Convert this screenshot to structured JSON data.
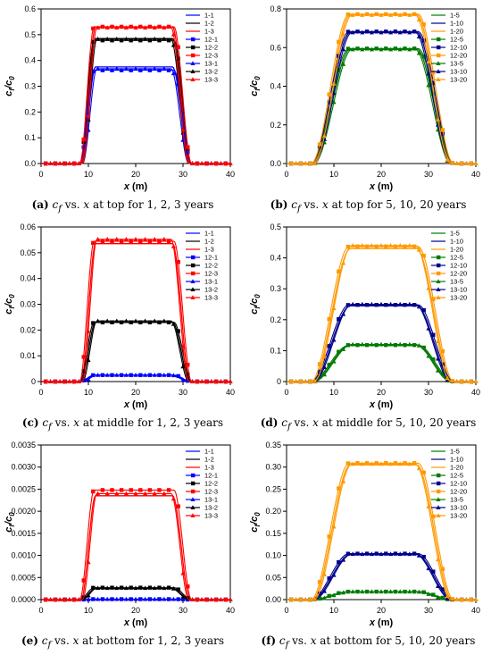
{
  "chart_data": [
    {
      "id": "a",
      "type": "line",
      "caption": {
        "label": "(a)",
        "sym": "c",
        "sub": "f",
        "rest1": " vs. ",
        "xvar": "x",
        "rest2": " at top for 1, 2, 3 years"
      },
      "xlabel": "x (m)",
      "ylabel": "cf/c0",
      "xlim": [
        0,
        40
      ],
      "ylim": [
        0,
        0.6
      ],
      "xticks": [
        "0",
        "10",
        "20",
        "30",
        "40"
      ],
      "yticks": [
        "0.0",
        "0.1",
        "0.2",
        "0.3",
        "0.4",
        "0.5",
        "0.6"
      ],
      "legend_position": "top-right",
      "series": [
        {
          "name": "1-1",
          "group": 1,
          "color": "#0000ff",
          "plateau": 0.375
        },
        {
          "name": "1-2",
          "group": 1,
          "color": "#000000",
          "plateau": 0.485
        },
        {
          "name": "1-3",
          "group": 1,
          "color": "#ff0000",
          "plateau": 0.53
        },
        {
          "name": "12-1",
          "group": 12,
          "color": "#0000ff",
          "plateau": 0.362
        },
        {
          "name": "12-2",
          "group": 12,
          "color": "#000000",
          "plateau": 0.478
        },
        {
          "name": "12-3",
          "group": 12,
          "color": "#ff0000",
          "plateau": 0.531
        },
        {
          "name": "13-1",
          "group": 13,
          "color": "#0000ff",
          "plateau": 0.368
        },
        {
          "name": "13-2",
          "group": 13,
          "color": "#000000",
          "plateau": 0.483
        },
        {
          "name": "13-3",
          "group": 13,
          "color": "#ff0000",
          "plateau": 0.527
        }
      ]
    },
    {
      "id": "b",
      "type": "line",
      "caption": {
        "label": "(b)",
        "sym": "c",
        "sub": "f",
        "rest1": " vs. ",
        "xvar": "x",
        "rest2": " at top for 5, 10, 20 years"
      },
      "xlabel": "x (m)",
      "ylabel": "cf/c0",
      "xlim": [
        0,
        40
      ],
      "ylim": [
        0,
        0.8
      ],
      "xticks": [
        "0",
        "10",
        "20",
        "30",
        "40"
      ],
      "yticks": [
        "0.0",
        "0.2",
        "0.4",
        "0.6",
        "0.8"
      ],
      "legend_position": "top-right",
      "series": [
        {
          "name": "1-5",
          "group": 1,
          "color": "#007a00",
          "plateau": 0.593
        },
        {
          "name": "1-10",
          "group": 1,
          "color": "#00008b",
          "plateau": 0.68
        },
        {
          "name": "1-20",
          "group": 1,
          "color": "#ff9900",
          "plateau": 0.77
        },
        {
          "name": "12-5",
          "group": 12,
          "color": "#007a00",
          "plateau": 0.595
        },
        {
          "name": "12-10",
          "group": 12,
          "color": "#00008b",
          "plateau": 0.683
        },
        {
          "name": "12-20",
          "group": 12,
          "color": "#ff9900",
          "plateau": 0.773
        },
        {
          "name": "13-5",
          "group": 13,
          "color": "#007a00",
          "plateau": 0.59
        },
        {
          "name": "13-10",
          "group": 13,
          "color": "#00008b",
          "plateau": 0.678
        },
        {
          "name": "13-20",
          "group": 13,
          "color": "#ff9900",
          "plateau": 0.768
        }
      ]
    },
    {
      "id": "c",
      "type": "line",
      "caption": {
        "label": "(c)",
        "sym": "c",
        "sub": "f",
        "rest1": " vs. ",
        "xvar": "x",
        "rest2": " at middle for 1, 2, 3 years"
      },
      "xlabel": "x (m)",
      "ylabel": "cf/c0",
      "xlim": [
        0,
        40
      ],
      "ylim": [
        0,
        0.06
      ],
      "xticks": [
        "0",
        "10",
        "20",
        "30",
        "40"
      ],
      "yticks": [
        "0",
        "0.01",
        "0.02",
        "0.03",
        "0.04",
        "0.05",
        "0.06"
      ],
      "legend_position": "top-right",
      "series": [
        {
          "name": "1-1",
          "group": 1,
          "color": "#0000ff",
          "plateau": 0.0025
        },
        {
          "name": "1-2",
          "group": 1,
          "color": "#000000",
          "plateau": 0.023
        },
        {
          "name": "1-3",
          "group": 1,
          "color": "#ff0000",
          "plateau": 0.0535
        },
        {
          "name": "12-1",
          "group": 12,
          "color": "#0000ff",
          "plateau": 0.0025
        },
        {
          "name": "12-2",
          "group": 12,
          "color": "#000000",
          "plateau": 0.023
        },
        {
          "name": "12-3",
          "group": 12,
          "color": "#ff0000",
          "plateau": 0.0545
        },
        {
          "name": "13-1",
          "group": 13,
          "color": "#0000ff",
          "plateau": 0.0025
        },
        {
          "name": "13-2",
          "group": 13,
          "color": "#000000",
          "plateau": 0.0235
        },
        {
          "name": "13-3",
          "group": 13,
          "color": "#ff0000",
          "plateau": 0.0552
        }
      ]
    },
    {
      "id": "d",
      "type": "line",
      "caption": {
        "label": "(d)",
        "sym": "c",
        "sub": "f",
        "rest1": " vs. ",
        "xvar": "x",
        "rest2": " at middle for 5, 10, 20 years"
      },
      "xlabel": "x (m)",
      "ylabel": "cf/c0",
      "xlim": [
        0,
        40
      ],
      "ylim": [
        0,
        0.5
      ],
      "xticks": [
        "0",
        "10",
        "20",
        "30",
        "40"
      ],
      "yticks": [
        "0",
        "0.1",
        "0.2",
        "0.3",
        "0.4",
        "0.5"
      ],
      "legend_position": "top-right",
      "series": [
        {
          "name": "1-5",
          "group": 1,
          "color": "#007a00",
          "plateau": 0.118
        },
        {
          "name": "1-10",
          "group": 1,
          "color": "#00008b",
          "plateau": 0.245
        },
        {
          "name": "1-20",
          "group": 1,
          "color": "#ff9900",
          "plateau": 0.43
        },
        {
          "name": "12-5",
          "group": 12,
          "color": "#007a00",
          "plateau": 0.118
        },
        {
          "name": "12-10",
          "group": 12,
          "color": "#00008b",
          "plateau": 0.248
        },
        {
          "name": "12-20",
          "group": 12,
          "color": "#ff9900",
          "plateau": 0.437
        },
        {
          "name": "13-5",
          "group": 13,
          "color": "#007a00",
          "plateau": 0.12
        },
        {
          "name": "13-10",
          "group": 13,
          "color": "#00008b",
          "plateau": 0.25
        },
        {
          "name": "13-20",
          "group": 13,
          "color": "#ff9900",
          "plateau": 0.44
        }
      ]
    },
    {
      "id": "e",
      "type": "line",
      "caption": {
        "label": "(e)",
        "sym": "c",
        "sub": "f",
        "rest1": " vs. ",
        "xvar": "x",
        "rest2": " at bottom for 1, 2, 3 years"
      },
      "xlabel": "x (m)",
      "ylabel": "cf/c0",
      "xlim": [
        0,
        40
      ],
      "ylim": [
        0,
        0.0035
      ],
      "xticks": [
        "0",
        "10",
        "20",
        "30",
        "40"
      ],
      "yticks": [
        "0.0000",
        "0.0005",
        "0.0010",
        "0.0015",
        "0.0020",
        "0.0025",
        "0.0030",
        "0.0035"
      ],
      "legend_position": "top-right",
      "series": [
        {
          "name": "1-1",
          "group": 1,
          "color": "#0000ff",
          "plateau": 1e-05
        },
        {
          "name": "1-2",
          "group": 1,
          "color": "#000000",
          "plateau": 0.00025
        },
        {
          "name": "1-3",
          "group": 1,
          "color": "#ff0000",
          "plateau": 0.00235
        },
        {
          "name": "12-1",
          "group": 12,
          "color": "#0000ff",
          "plateau": 1e-05
        },
        {
          "name": "12-2",
          "group": 12,
          "color": "#000000",
          "plateau": 0.00027
        },
        {
          "name": "12-3",
          "group": 12,
          "color": "#ff0000",
          "plateau": 0.00248
        },
        {
          "name": "13-1",
          "group": 13,
          "color": "#0000ff",
          "plateau": 1e-05
        },
        {
          "name": "13-2",
          "group": 13,
          "color": "#000000",
          "plateau": 0.00026
        },
        {
          "name": "13-3",
          "group": 13,
          "color": "#ff0000",
          "plateau": 0.0024
        }
      ]
    },
    {
      "id": "f",
      "type": "line",
      "caption": {
        "label": "(f)",
        "sym": "c",
        "sub": "f",
        "rest1": " vs. ",
        "xvar": "x",
        "rest2": " at bottom for 5, 10, 20 years"
      },
      "xlabel": "x (m)",
      "ylabel": "cf/c0",
      "xlim": [
        0,
        40
      ],
      "ylim": [
        0,
        0.35
      ],
      "xticks": [
        "0",
        "10",
        "20",
        "30",
        "40"
      ],
      "yticks": [
        "0.00",
        "0.05",
        "0.10",
        "0.15",
        "0.20",
        "0.25",
        "0.30",
        "0.35"
      ],
      "legend_position": "top-right",
      "series": [
        {
          "name": "1-5",
          "group": 1,
          "color": "#007a00",
          "plateau": 0.018
        },
        {
          "name": "1-10",
          "group": 1,
          "color": "#00008b",
          "plateau": 0.102
        },
        {
          "name": "1-20",
          "group": 1,
          "color": "#ff9900",
          "plateau": 0.305
        },
        {
          "name": "12-5",
          "group": 12,
          "color": "#007a00",
          "plateau": 0.018
        },
        {
          "name": "12-10",
          "group": 12,
          "color": "#00008b",
          "plateau": 0.104
        },
        {
          "name": "12-20",
          "group": 12,
          "color": "#ff9900",
          "plateau": 0.309
        },
        {
          "name": "13-5",
          "group": 13,
          "color": "#007a00",
          "plateau": 0.018
        },
        {
          "name": "13-10",
          "group": 13,
          "color": "#00008b",
          "plateau": 0.103
        },
        {
          "name": "13-20",
          "group": 13,
          "color": "#ff9900",
          "plateau": 0.307
        }
      ]
    }
  ]
}
